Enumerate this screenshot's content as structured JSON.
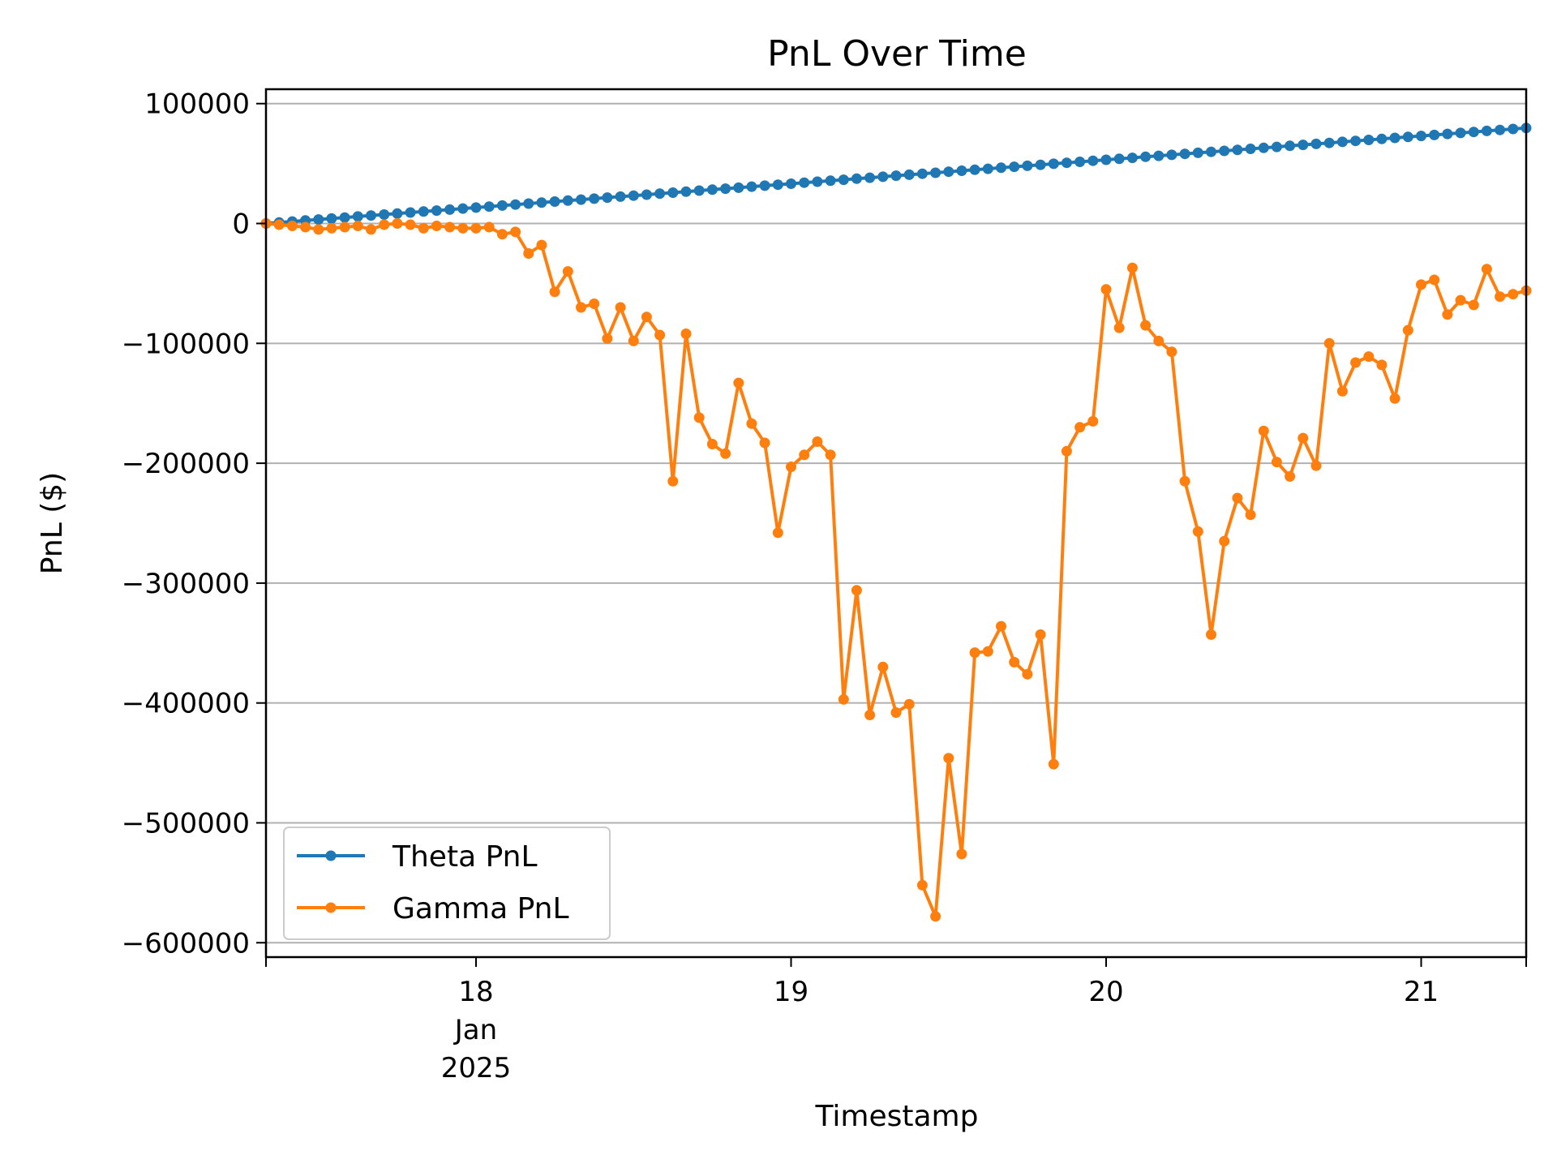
{
  "chart_data": {
    "type": "line",
    "title": "PnL Over Time",
    "xlabel": "Timestamp",
    "ylabel": "PnL ($)",
    "x_axis": {
      "type": "date",
      "start": "2025-01-17T08:00:00",
      "step_hours": 1,
      "ticks": [
        {
          "date": "2025-01-18",
          "lines": [
            "18",
            "Jan",
            "2025"
          ]
        },
        {
          "date": "2025-01-19",
          "lines": [
            "19"
          ]
        },
        {
          "date": "2025-01-20",
          "lines": [
            "20"
          ]
        },
        {
          "date": "2025-01-21",
          "lines": [
            "21"
          ]
        }
      ],
      "range": [
        "2025-01-17T08:00:00",
        "2025-01-21T08:00:00"
      ]
    },
    "y_axis": {
      "range": [
        -612000,
        112000
      ],
      "ticks": [
        100000,
        0,
        -100000,
        -200000,
        -300000,
        -400000,
        -500000,
        -600000
      ],
      "tick_labels": [
        "100000",
        "0",
        "−100000",
        "−200000",
        "−300000",
        "−400000",
        "−500000",
        "−600000"
      ]
    },
    "grid": "y",
    "legend": "lower-left",
    "series": [
      {
        "name": "Theta PnL",
        "color": "#1f77b4",
        "values": [
          0,
          830,
          1660,
          2490,
          3320,
          4150,
          4980,
          5810,
          6640,
          7470,
          8300,
          9130,
          9960,
          10790,
          11620,
          12450,
          13280,
          14110,
          14940,
          15770,
          16600,
          17430,
          18260,
          19090,
          19920,
          20750,
          21580,
          22410,
          23240,
          24070,
          24900,
          25730,
          26560,
          27390,
          28220,
          29050,
          29880,
          30710,
          31540,
          32370,
          33200,
          34030,
          34860,
          35690,
          36520,
          37350,
          38180,
          39010,
          39840,
          40670,
          41500,
          42330,
          43160,
          43990,
          44820,
          45650,
          46480,
          47310,
          48140,
          48970,
          49800,
          50630,
          51460,
          52290,
          53120,
          53950,
          54780,
          55610,
          56440,
          57270,
          58100,
          58930,
          59760,
          60590,
          61420,
          62250,
          63080,
          63910,
          64740,
          65570,
          66400,
          67230,
          68060,
          68890,
          69720,
          70550,
          71380,
          72210,
          73040,
          73870,
          74700,
          75530,
          76360,
          77190,
          78020,
          78850,
          79680
        ]
      },
      {
        "name": "Gamma PnL",
        "color": "#ff7f0e",
        "values": [
          0,
          -1000,
          -2000,
          -3000,
          -5000,
          -4000,
          -3000,
          -2000,
          -5000,
          -1000,
          0,
          -1000,
          -4000,
          -2000,
          -3000,
          -4000,
          -4000,
          -3000,
          -9000,
          -7000,
          -25000,
          -18000,
          -57000,
          -40000,
          -70000,
          -67000,
          -96000,
          -70000,
          -98000,
          -78000,
          -93000,
          -215000,
          -92000,
          -162000,
          -184000,
          -192000,
          -133000,
          -167000,
          -183000,
          -258000,
          -203000,
          -193000,
          -182000,
          -193000,
          -397000,
          -306000,
          -410000,
          -370000,
          -408000,
          -401000,
          -552000,
          -578000,
          -446000,
          -526000,
          -358000,
          -357000,
          -336000,
          -366000,
          -376000,
          -343000,
          -451000,
          -190000,
          -170000,
          -165000,
          -55000,
          -87000,
          -37000,
          -85000,
          -98000,
          -107000,
          -215000,
          -257000,
          -343000,
          -265000,
          -229000,
          -243000,
          -173000,
          -199000,
          -211000,
          -179000,
          -202000,
          -100000,
          -140000,
          -116000,
          -111000,
          -118000,
          -146000,
          -89000,
          -51000,
          -47000,
          -76000,
          -64000,
          -68000,
          -38000,
          -61000,
          -59000,
          -56000
        ]
      }
    ]
  }
}
